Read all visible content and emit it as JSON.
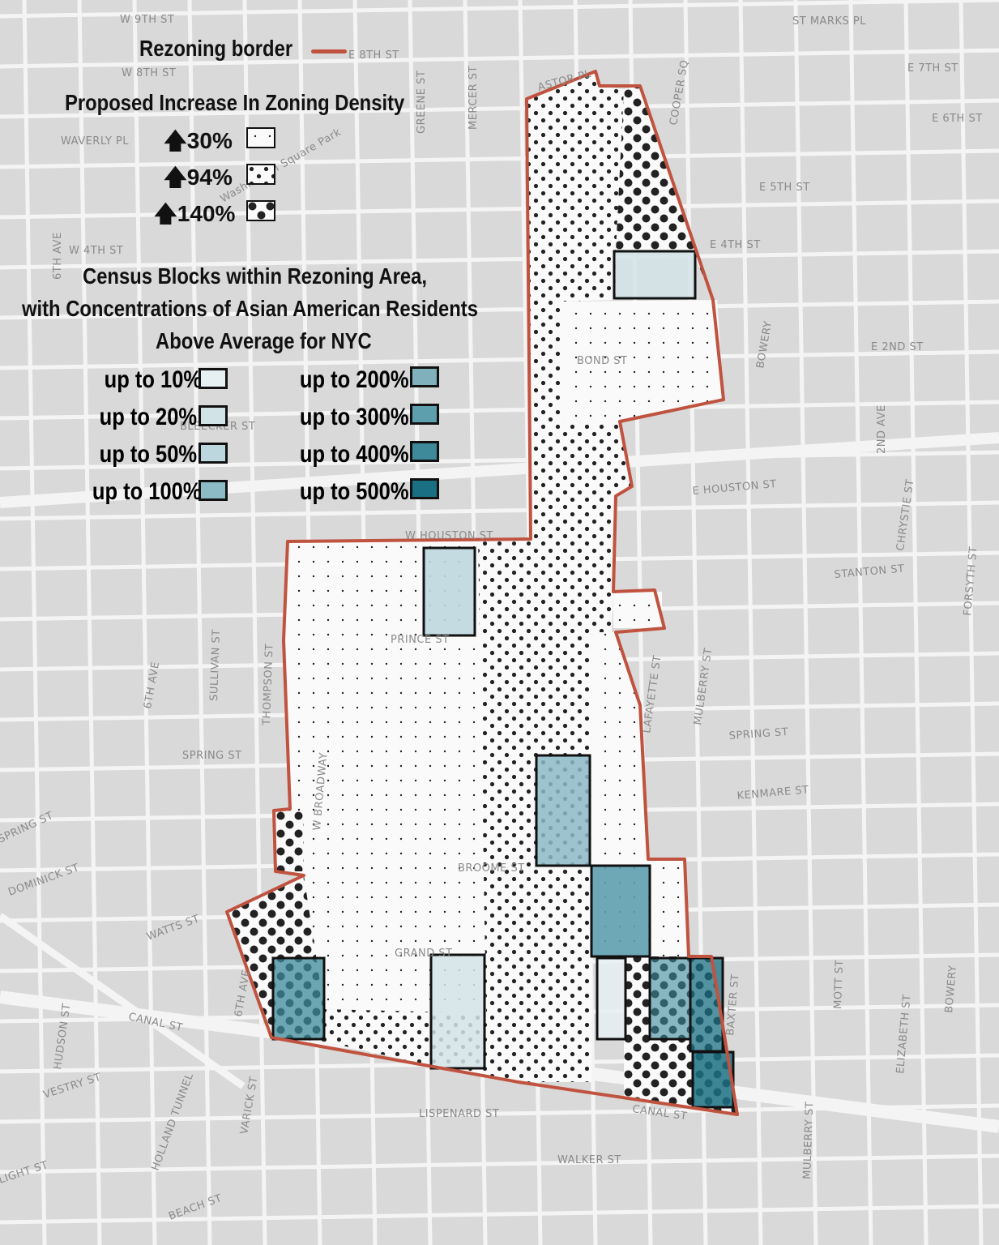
{
  "legend": {
    "border_label": "Rezoning border",
    "border_color": "#c0533f",
    "density_title": "Proposed Increase In Zoning Density",
    "density_items": [
      {
        "label": "30%",
        "icon": "up-arrow",
        "pattern": "small-dots"
      },
      {
        "label": "94%",
        "icon": "up-arrow",
        "pattern": "medium-dots"
      },
      {
        "label": "140%",
        "icon": "up-arrow",
        "pattern": "large-dots"
      }
    ],
    "census_title_1": "Census Blocks within Rezoning Area,",
    "census_title_2": "with Concentrations of Asian American Residents",
    "census_title_3": "Above Average for NYC",
    "census_items": [
      {
        "label": "up to 10%",
        "color": "#e6eff2"
      },
      {
        "label": "up to 20%",
        "color": "#d2e3e8"
      },
      {
        "label": "up to 50%",
        "color": "#bcd7de"
      },
      {
        "label": "up to 100%",
        "color": "#8cbac5"
      },
      {
        "label": "up to 200%",
        "color": "#7fb0bc"
      },
      {
        "label": "up to 300%",
        "color": "#5e9fae"
      },
      {
        "label": "up to 400%",
        "color": "#3e8a9b"
      },
      {
        "label": "up to 500%",
        "color": "#1b6f82"
      }
    ]
  },
  "streets": [
    "W 9TH ST",
    "E 8TH ST",
    "W 8TH ST",
    "WAVERLY PL",
    "W 4TH ST",
    "ST MARKS PL",
    "E 7TH ST",
    "E 6TH ST",
    "E 5TH ST",
    "E 4TH ST",
    "E 2ND ST",
    "BOND ST",
    "BLEECKER ST",
    "E HOUSTON ST",
    "W HOUSTON ST",
    "STANTON ST",
    "PRINCE ST",
    "SPRING ST",
    "SPRING ST",
    "KENMARE ST",
    "BROOME ST",
    "GRAND ST",
    "CANAL ST",
    "CANAL ST",
    "WATTS ST",
    "LISPENARD ST",
    "WALKER ST",
    "BEACH ST",
    "VESTRY ST",
    "LIGHT ST",
    "DOMINICK ST",
    "SPRING ST",
    "BOWERY",
    "BOWERY",
    "2ND AVE",
    "CHRYSTIE ST",
    "FORSYTH ST",
    "MULBERRY ST",
    "MULBERRY ST",
    "MOTT ST",
    "ELIZABETH ST",
    "BAXTER ST",
    "LAFAYETTE ST",
    "6TH AVE",
    "6TH AVE",
    "SULLIVAN ST",
    "THOMPSON ST",
    "W BROADWAY",
    "HUDSON ST",
    "VARICK ST",
    "HOLLAND TUNNEL",
    "COOPER SQ",
    "ASTOR PL",
    "MERCER ST",
    "GREENE ST",
    "6TH AVE",
    "Washington Square Park"
  ]
}
